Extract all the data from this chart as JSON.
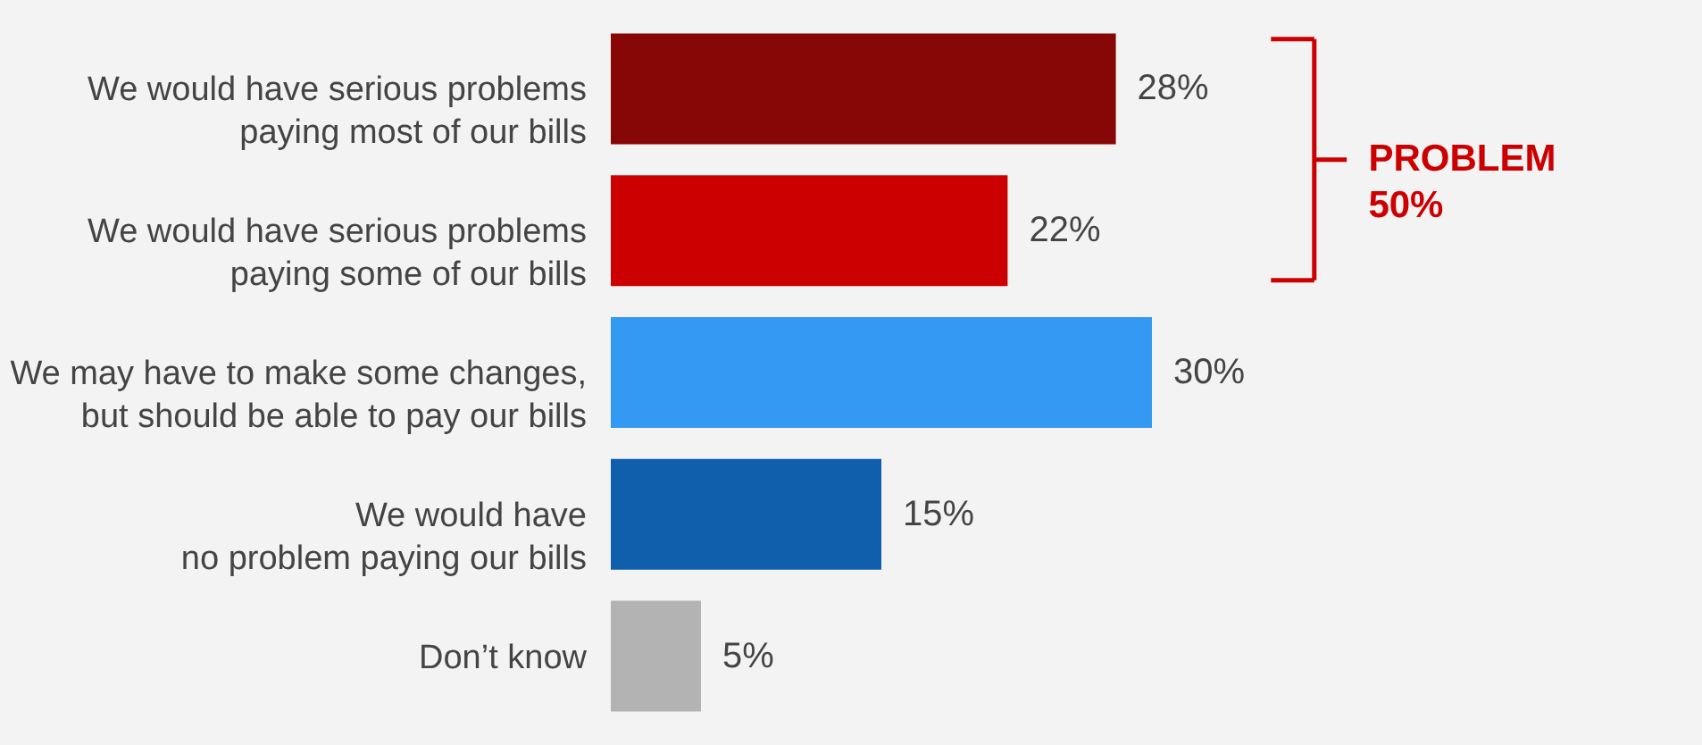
{
  "chart_data": {
    "type": "bar",
    "orientation": "horizontal",
    "categories": [
      "We would have serious problems\npaying most of our bills",
      "We would have serious problems\npaying some of our bills",
      "We may have to make some changes,\nbut should be able to pay our bills",
      "We would have\nno problem paying our bills",
      "Don’t know"
    ],
    "values": [
      28,
      22,
      30,
      15,
      5
    ],
    "colors": [
      "#870606",
      "#cc0000",
      "#3399f3",
      "#0f5fad",
      "#b3b3b3"
    ],
    "value_labels": [
      "28%",
      "22%",
      "30%",
      "15%",
      "5%"
    ],
    "annotations": [
      "PROBLEM 50%"
    ]
  }
}
